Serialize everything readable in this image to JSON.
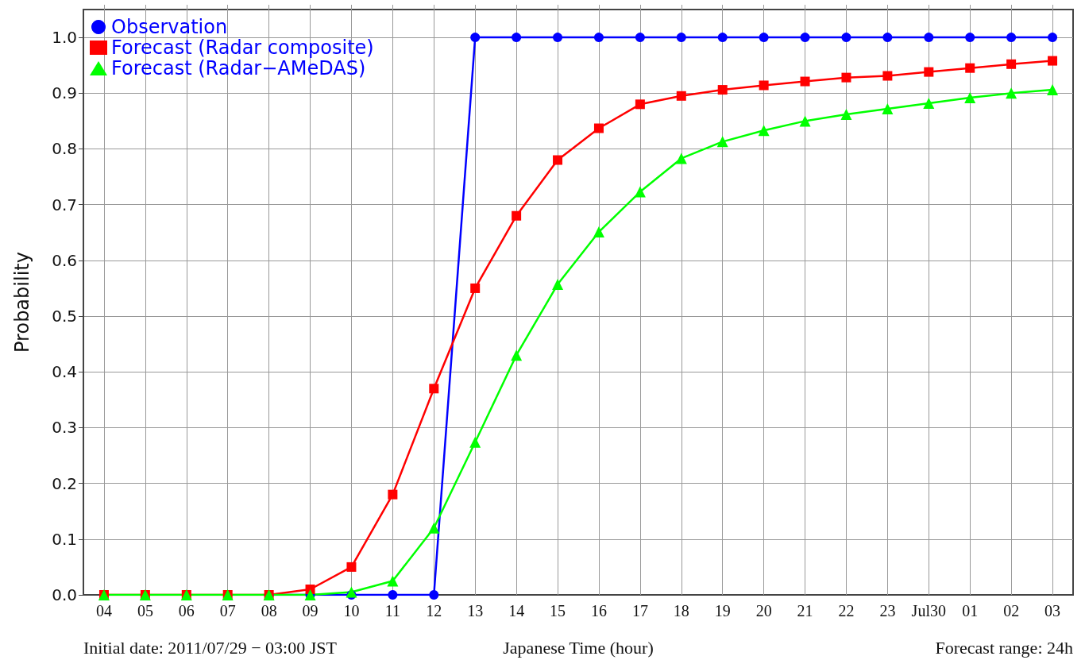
{
  "chart_data": {
    "type": "line",
    "xlabel": "Japanese Time (hour)",
    "ylabel": "Probability",
    "categories": [
      "04",
      "05",
      "06",
      "07",
      "08",
      "09",
      "10",
      "11",
      "12",
      "13",
      "14",
      "15",
      "16",
      "17",
      "18",
      "19",
      "20",
      "21",
      "22",
      "23",
      "Jul30",
      "01",
      "02",
      "03"
    ],
    "series": [
      {
        "name": "Observation",
        "color": "#0000ff",
        "marker": "circle",
        "values": [
          null,
          null,
          null,
          null,
          0,
          0,
          0,
          0,
          0,
          1,
          1,
          1,
          1,
          1,
          1,
          1,
          1,
          1,
          1,
          1,
          1,
          1,
          1,
          1
        ]
      },
      {
        "name": "Forecast (Radar composite)",
        "color": "#ff0000",
        "marker": "square",
        "values": [
          0,
          0,
          0,
          0,
          0,
          0.01,
          0.05,
          0.18,
          0.37,
          0.55,
          0.68,
          0.78,
          0.837,
          0.88,
          0.895,
          0.906,
          0.914,
          0.921,
          0.928,
          0.931,
          0.938,
          0.945,
          0.952,
          0.958
        ]
      },
      {
        "name": "Forecast (Radar−AMeDAS)",
        "color": "#00ff00",
        "marker": "triangle",
        "values": [
          0,
          0,
          0,
          0,
          0,
          0,
          0.005,
          0.025,
          0.12,
          0.274,
          0.43,
          0.557,
          0.651,
          0.723,
          0.783,
          0.813,
          0.833,
          0.85,
          0.862,
          0.872,
          0.882,
          0.892,
          0.9,
          0.906
        ]
      }
    ],
    "ylim": [
      0,
      1.05
    ],
    "yticks": [
      {
        "value": 0,
        "label": "0.0"
      },
      {
        "value": 0.1,
        "label": "0.1"
      },
      {
        "value": 0.2,
        "label": "0.2"
      },
      {
        "value": 0.3,
        "label": "0.3"
      },
      {
        "value": 0.4,
        "label": "0.4"
      },
      {
        "value": 0.5,
        "label": "0.5"
      },
      {
        "value": 0.6,
        "label": "0.6"
      },
      {
        "value": 0.7,
        "label": "0.7"
      },
      {
        "value": 0.8,
        "label": "0.8"
      },
      {
        "value": 0.9,
        "label": "0.9"
      },
      {
        "value": 1,
        "label": "1.0"
      }
    ],
    "grid": true,
    "legend": "top left",
    "line_style": "solid",
    "annotations": [
      "Initial date: 2011/07/29 − 03:00 JST",
      "Forecast range: 24h"
    ]
  }
}
